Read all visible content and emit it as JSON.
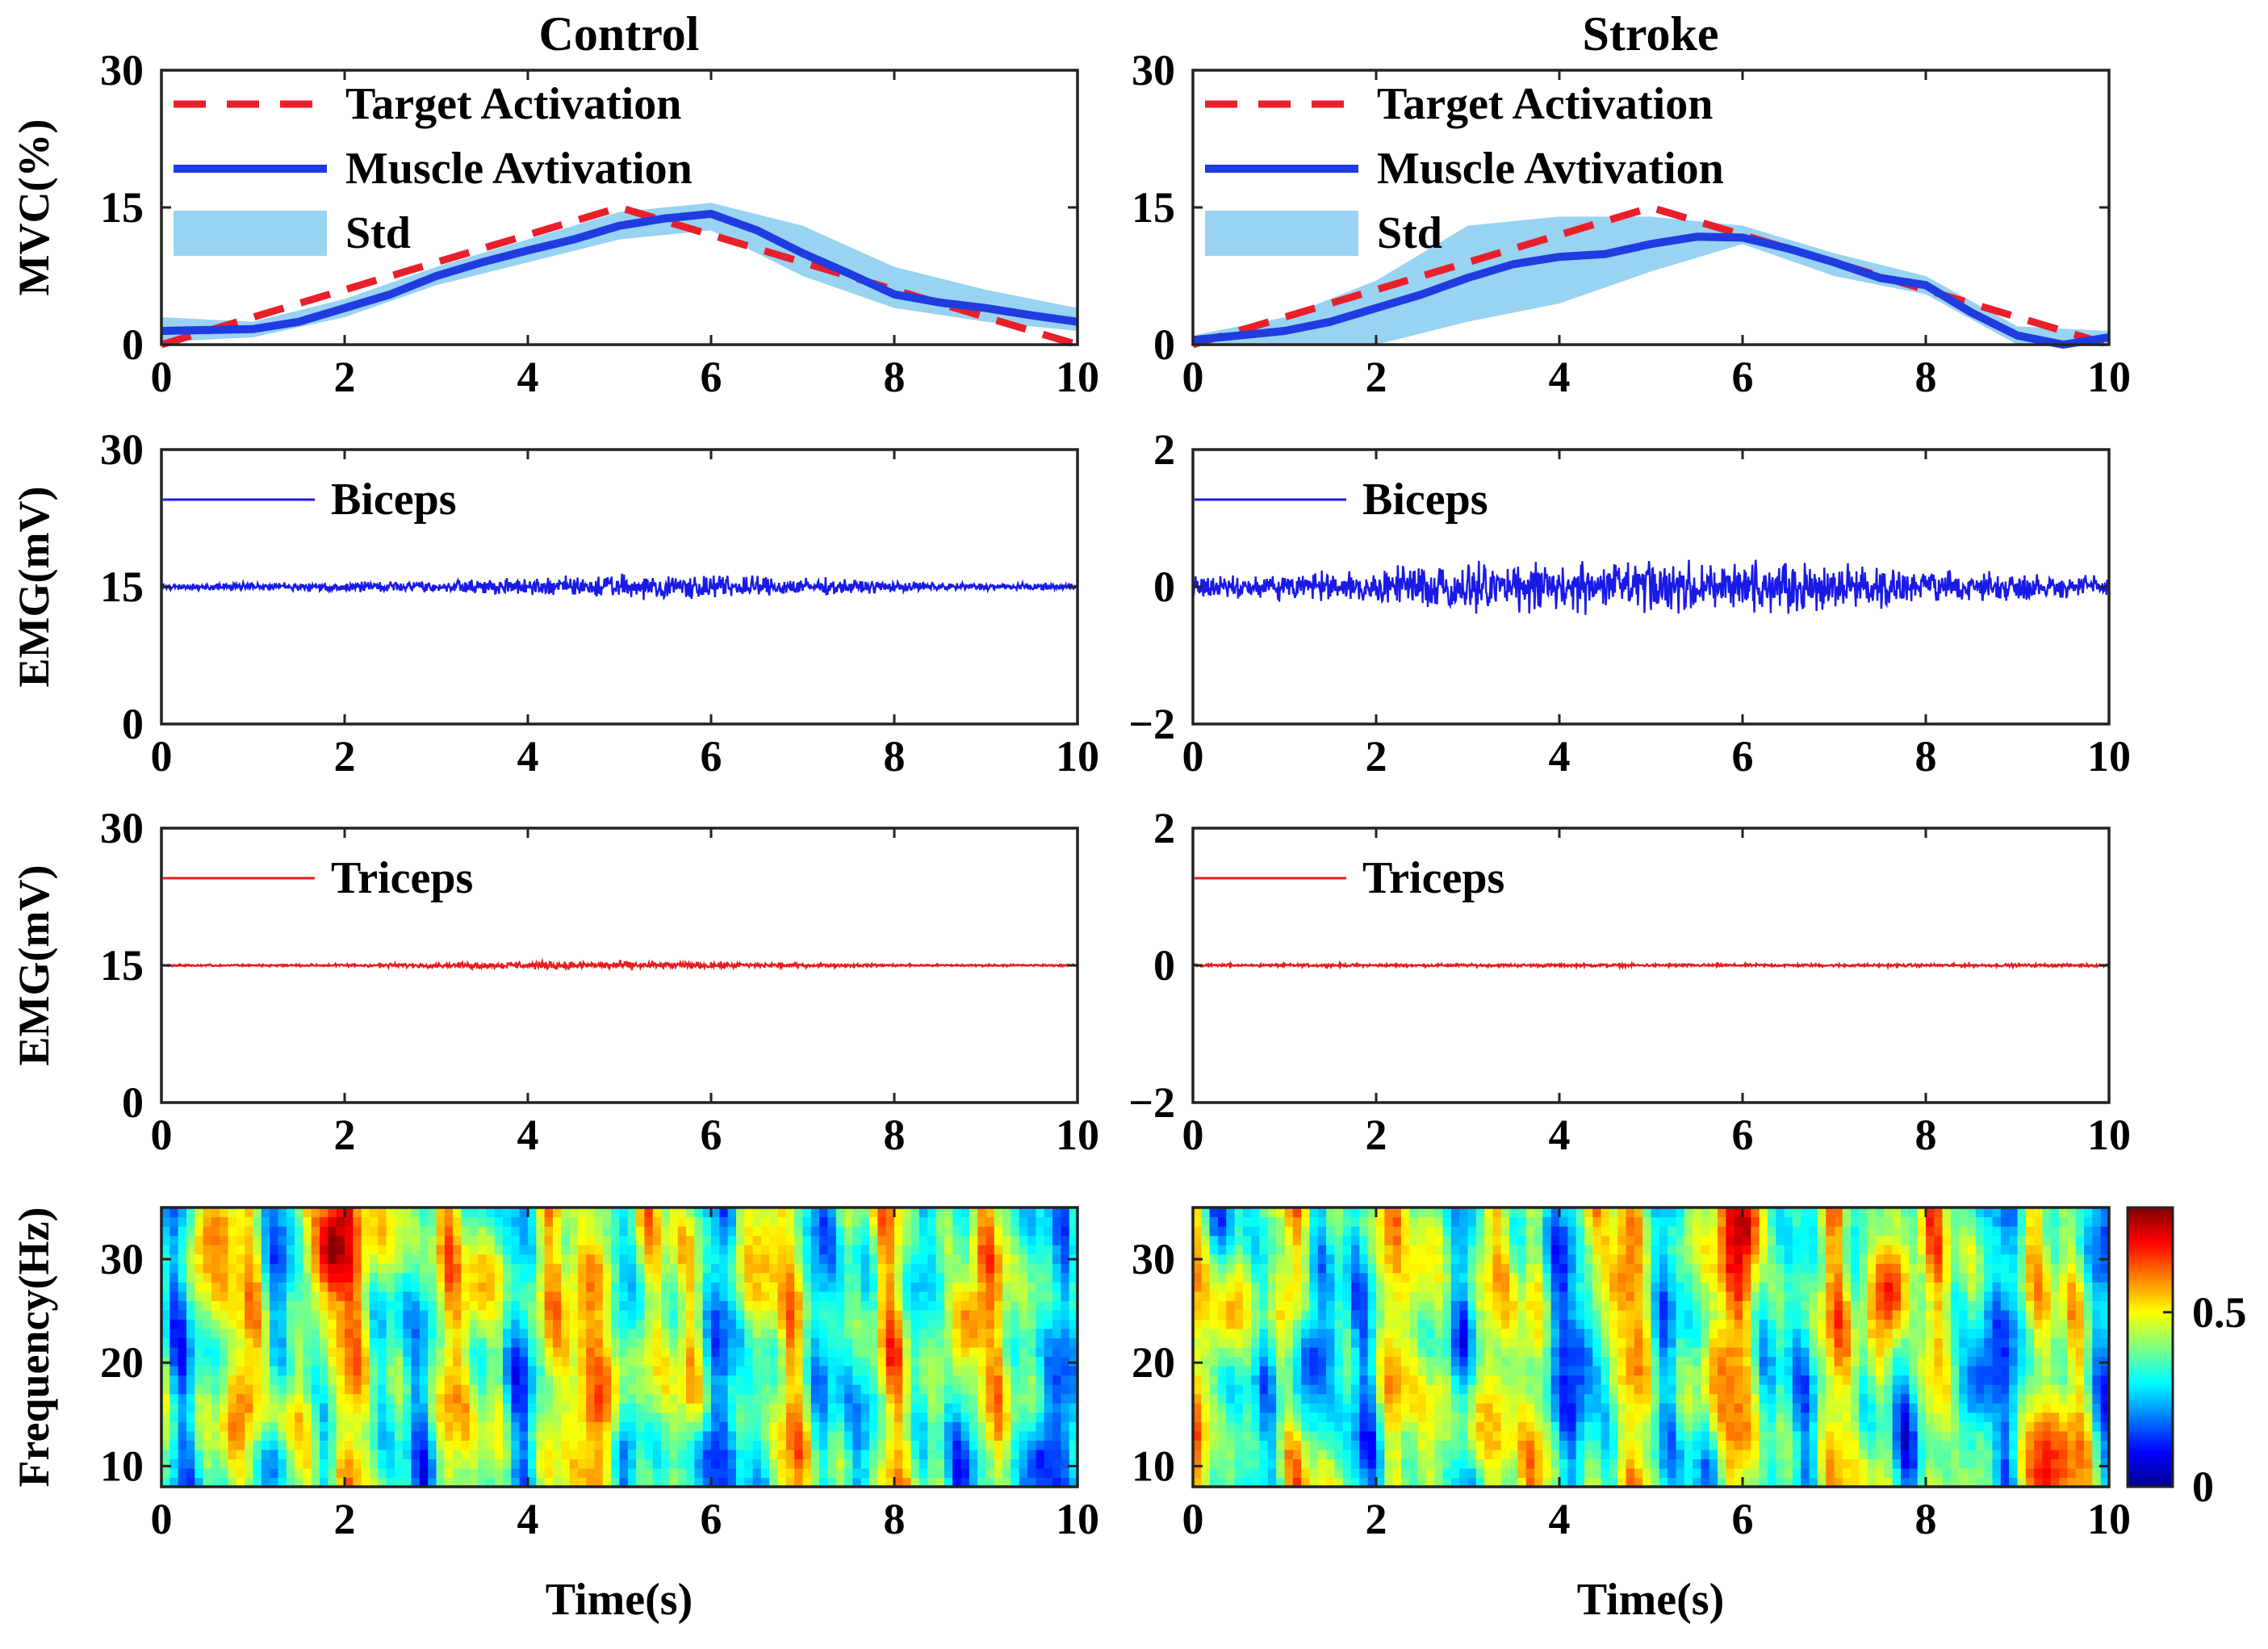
{
  "figure": {
    "columns": [
      "Control",
      "Stroke"
    ],
    "xlabel": "Time(s)",
    "colorbar": {
      "ticks": [
        0,
        0.5
      ],
      "range": [
        0,
        0.8
      ],
      "colormap": "jet"
    }
  },
  "chart_data": [
    {
      "id": "control-mvc",
      "type": "line",
      "column": "Control",
      "title": "Control",
      "xlabel": "",
      "ylabel": "MVC(%)",
      "xlim": [
        0,
        10
      ],
      "ylim": [
        0,
        30
      ],
      "xticks": [
        0,
        2,
        4,
        6,
        8,
        10
      ],
      "yticks": [
        0,
        15,
        30
      ],
      "legend": [
        "Target Activation",
        "Muscle Avtivation",
        "Std"
      ],
      "legend_position": "top-left",
      "series": [
        {
          "name": "Target Activation",
          "style": "dashed",
          "color": "#e8202a",
          "x": [
            0,
            5,
            10
          ],
          "y": [
            0,
            15,
            0
          ]
        },
        {
          "name": "Muscle Avtivation",
          "style": "solid",
          "color": "#1f3ce0",
          "x": [
            0,
            0.5,
            1,
            1.5,
            2,
            2.5,
            3,
            3.5,
            4,
            4.5,
            5,
            5.5,
            6,
            6.5,
            7,
            7.5,
            8,
            8.5,
            9,
            9.5,
            10
          ],
          "y": [
            1.5,
            1.6,
            1.7,
            2.5,
            4.0,
            5.5,
            7.5,
            9.0,
            10.3,
            11.5,
            13.0,
            13.8,
            14.3,
            12.5,
            10.0,
            7.8,
            5.5,
            4.6,
            4.0,
            3.2,
            2.5
          ]
        }
      ],
      "band": {
        "name": "Std",
        "color": "#99d3f2",
        "x": [
          0,
          1,
          2,
          3,
          4,
          5,
          6,
          7,
          8,
          9,
          10
        ],
        "upper": [
          3.0,
          2.5,
          5.0,
          8.5,
          11.5,
          14.5,
          15.5,
          13.0,
          8.5,
          6.0,
          4.0
        ],
        "lower": [
          0.3,
          0.8,
          3.0,
          6.5,
          9.0,
          11.5,
          12.5,
          7.5,
          4.0,
          2.5,
          1.5
        ]
      }
    },
    {
      "id": "stroke-mvc",
      "type": "line",
      "column": "Stroke",
      "title": "Stroke",
      "xlabel": "",
      "ylabel": "",
      "xlim": [
        0,
        10
      ],
      "ylim": [
        0,
        30
      ],
      "xticks": [
        0,
        2,
        4,
        6,
        8,
        10
      ],
      "yticks": [
        0,
        15,
        30
      ],
      "legend": [
        "Target Activation",
        "Muscle Avtivation",
        "Std"
      ],
      "legend_position": "top-left",
      "series": [
        {
          "name": "Target Activation",
          "style": "dashed",
          "color": "#e8202a",
          "x": [
            0,
            5,
            10
          ],
          "y": [
            0,
            15,
            0
          ]
        },
        {
          "name": "Muscle Avtivation",
          "style": "solid",
          "color": "#1f3ce0",
          "x": [
            0,
            0.5,
            1,
            1.5,
            2,
            2.5,
            3,
            3.5,
            4,
            4.5,
            5,
            5.5,
            6,
            6.5,
            7,
            7.5,
            8,
            8.5,
            9,
            9.5,
            10
          ],
          "y": [
            0.5,
            1.0,
            1.5,
            2.5,
            4.0,
            5.5,
            7.3,
            8.8,
            9.6,
            9.9,
            11.0,
            11.8,
            11.7,
            10.5,
            9.0,
            7.3,
            6.5,
            3.5,
            1.0,
            0,
            0.8
          ]
        }
      ],
      "band": {
        "name": "Std",
        "color": "#99d3f2",
        "x": [
          0,
          1,
          2,
          3,
          4,
          5,
          6,
          7,
          8,
          9,
          10
        ],
        "upper": [
          1.0,
          3.0,
          7.0,
          13.0,
          14.0,
          14.0,
          13.0,
          10.0,
          7.5,
          2.0,
          1.5
        ],
        "lower": [
          0,
          0,
          0,
          2.5,
          4.5,
          8.0,
          11.0,
          7.5,
          5.5,
          0,
          0
        ]
      }
    },
    {
      "id": "control-biceps",
      "type": "line",
      "column": "Control",
      "xlabel": "",
      "ylabel": "EMG(mV)",
      "xlim": [
        0,
        10
      ],
      "ylim": [
        0,
        30
      ],
      "xticks": [
        0,
        2,
        4,
        6,
        8,
        10
      ],
      "yticks": [
        0,
        15,
        30
      ],
      "legend": [
        "Biceps"
      ],
      "legend_position": "top-left",
      "series": [
        {
          "name": "Biceps",
          "color": "#1a1ae6",
          "signal": "emg",
          "baseline": 15,
          "envelope_x": [
            0,
            1,
            2,
            3,
            4,
            5,
            6,
            7,
            8,
            9,
            10
          ],
          "envelope_amplitude": [
            0.35,
            0.4,
            0.5,
            0.7,
            1.0,
            1.2,
            1.3,
            1.0,
            0.6,
            0.4,
            0.35
          ]
        }
      ]
    },
    {
      "id": "stroke-biceps",
      "type": "line",
      "column": "Stroke",
      "xlabel": "",
      "ylabel": "",
      "xlim": [
        0,
        10
      ],
      "ylim": [
        -2,
        2
      ],
      "xticks": [
        0,
        2,
        4,
        6,
        8,
        10
      ],
      "yticks": [
        -2,
        0,
        2
      ],
      "legend": [
        "Biceps"
      ],
      "legend_position": "top-left",
      "series": [
        {
          "name": "Biceps",
          "color": "#1a1ae6",
          "signal": "emg",
          "baseline": 0,
          "envelope_x": [
            0,
            1,
            2,
            3,
            4,
            5,
            6,
            7,
            8,
            9,
            10
          ],
          "envelope_amplitude": [
            0.15,
            0.2,
            0.25,
            0.35,
            0.35,
            0.35,
            0.4,
            0.3,
            0.25,
            0.2,
            0.15
          ]
        }
      ]
    },
    {
      "id": "control-triceps",
      "type": "line",
      "column": "Control",
      "xlabel": "",
      "ylabel": "EMG(mV)",
      "xlim": [
        0,
        10
      ],
      "ylim": [
        0,
        30
      ],
      "xticks": [
        0,
        2,
        4,
        6,
        8,
        10
      ],
      "yticks": [
        0,
        15,
        30
      ],
      "legend": [
        "Triceps"
      ],
      "legend_position": "top-left",
      "series": [
        {
          "name": "Triceps",
          "color": "#e81c1c",
          "signal": "emg",
          "baseline": 15,
          "envelope_x": [
            0,
            1,
            2,
            3,
            4,
            5,
            6,
            7,
            8,
            9,
            10
          ],
          "envelope_amplitude": [
            0.1,
            0.1,
            0.15,
            0.25,
            0.4,
            0.45,
            0.35,
            0.2,
            0.12,
            0.1,
            0.1
          ]
        }
      ]
    },
    {
      "id": "stroke-triceps",
      "type": "line",
      "column": "Stroke",
      "xlabel": "",
      "ylabel": "",
      "xlim": [
        0,
        10
      ],
      "ylim": [
        -2,
        2
      ],
      "xticks": [
        0,
        2,
        4,
        6,
        8,
        10
      ],
      "yticks": [
        -2,
        0,
        2
      ],
      "legend": [
        "Triceps"
      ],
      "legend_position": "top-left",
      "series": [
        {
          "name": "Triceps",
          "color": "#e81c1c",
          "signal": "emg",
          "baseline": 0,
          "envelope_x": [
            0,
            1,
            2,
            3,
            4,
            5,
            6,
            7,
            8,
            9,
            10
          ],
          "envelope_amplitude": [
            0.02,
            0.02,
            0.02,
            0.02,
            0.02,
            0.02,
            0.02,
            0.02,
            0.02,
            0.02,
            0.02
          ]
        }
      ]
    },
    {
      "id": "control-coherence",
      "type": "heatmap",
      "column": "Control",
      "xlabel": "Time(s)",
      "ylabel": "Frequency(Hz)",
      "xlim": [
        0,
        10
      ],
      "ylim": [
        8,
        35
      ],
      "xticks": [
        0,
        2,
        4,
        6,
        8,
        10
      ],
      "yticks": [
        10,
        20,
        30
      ],
      "zlim": [
        0,
        0.8
      ],
      "colormap": "jet",
      "hotspots": [
        {
          "t": 1.9,
          "f": 31,
          "value": 0.8
        },
        {
          "t": 0.9,
          "f": 13.5,
          "value": 0.65
        },
        {
          "t": 1.4,
          "f": 12.5,
          "value": 0.7
        },
        {
          "t": 0.6,
          "f": 32,
          "value": 0.6
        },
        {
          "t": 4.8,
          "f": 17,
          "value": 0.65
        },
        {
          "t": 4.7,
          "f": 28,
          "value": 0.6
        },
        {
          "t": 3.5,
          "f": 28,
          "value": 0.55
        },
        {
          "t": 8.8,
          "f": 24,
          "value": 0.6
        },
        {
          "t": 6.6,
          "f": 30,
          "value": 0.55
        },
        {
          "t": 2.4,
          "f": 33,
          "value": 0.55
        },
        {
          "t": 6.0,
          "f": 10,
          "value": 0.15
        },
        {
          "t": 9.6,
          "f": 10,
          "value": 0.12
        },
        {
          "t": 1.2,
          "f": 9.5,
          "value": 0.2
        }
      ]
    },
    {
      "id": "stroke-coherence",
      "type": "heatmap",
      "column": "Stroke",
      "xlabel": "Time(s)",
      "ylabel": "",
      "xlim": [
        0,
        10
      ],
      "ylim": [
        8,
        35
      ],
      "xticks": [
        0,
        2,
        4,
        6,
        8,
        10
      ],
      "yticks": [
        10,
        20,
        30
      ],
      "zlim": [
        0,
        0.8
      ],
      "colormap": "jet",
      "hotspots": [
        {
          "t": 7.6,
          "f": 27,
          "value": 0.7
        },
        {
          "t": 6.0,
          "f": 33,
          "value": 0.75
        },
        {
          "t": 9.3,
          "f": 9.5,
          "value": 0.7
        },
        {
          "t": 5.8,
          "f": 19,
          "value": 0.6
        },
        {
          "t": 3.2,
          "f": 14,
          "value": 0.55
        },
        {
          "t": 4.7,
          "f": 28,
          "value": 0.6
        },
        {
          "t": 0.4,
          "f": 25,
          "value": 0.55
        },
        {
          "t": 2.5,
          "f": 30,
          "value": 0.5
        },
        {
          "t": 1.3,
          "f": 20,
          "value": 0.15
        },
        {
          "t": 4.2,
          "f": 20,
          "value": 0.15
        },
        {
          "t": 8.6,
          "f": 18,
          "value": 0.15
        }
      ]
    }
  ]
}
